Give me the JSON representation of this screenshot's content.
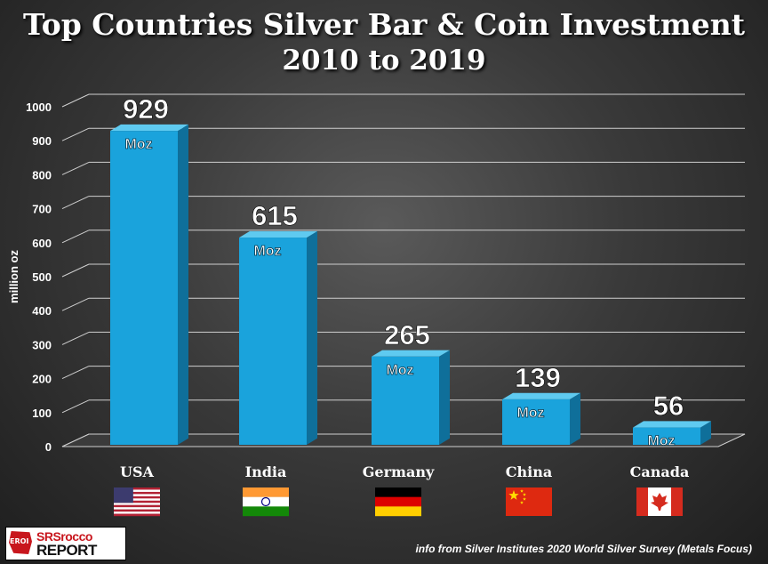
{
  "chart_data": {
    "type": "bar",
    "title": "Top Countries Silver Bar & Coin Investment",
    "subtitle": "2010 to 2019",
    "ylabel": "million oz",
    "xlabel": "",
    "ylim": [
      0,
      1000
    ],
    "yticks": [
      0,
      100,
      200,
      300,
      400,
      500,
      600,
      700,
      800,
      900,
      1000
    ],
    "grid": true,
    "categories": [
      "USA",
      "India",
      "Germany",
      "China",
      "Canada"
    ],
    "values": [
      929,
      615,
      265,
      139,
      56
    ],
    "value_unit": "Moz",
    "flags": [
      "usa-flag",
      "india-flag",
      "germany-flag",
      "china-flag",
      "canada-flag"
    ],
    "bar_color": "#1aa3dc"
  },
  "logo": {
    "top": "SRSrocco",
    "bottom": "REPORT",
    "mark": "EROI"
  },
  "source": "info from Silver Institutes 2020 World Silver Survey (Metals Focus)"
}
